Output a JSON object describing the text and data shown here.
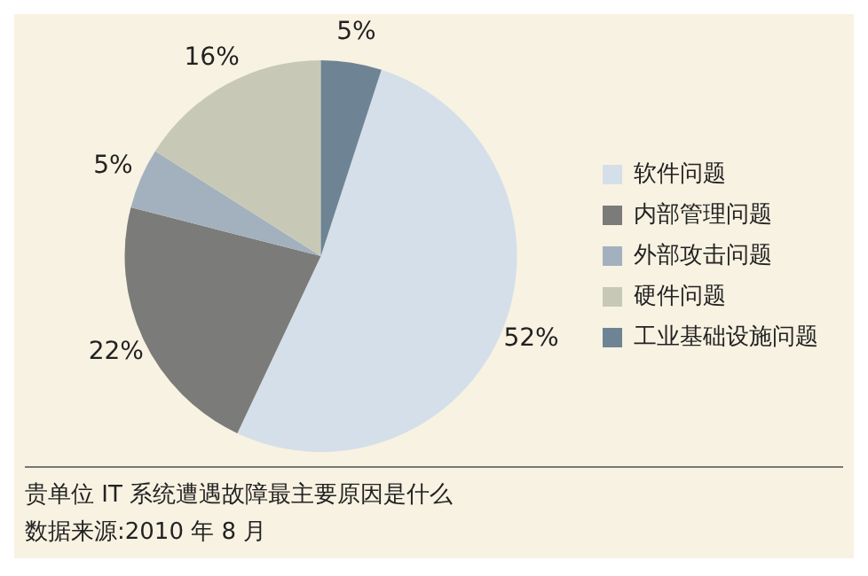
{
  "chart_data": {
    "type": "pie",
    "title": "贵单位 IT 系统遭遇故障最主要原因是什么",
    "annotations": [
      "数据来源:2010 年 8 月"
    ],
    "categories": [
      "软件问题",
      "内部管理问题",
      "外部攻击问题",
      "硬件问题",
      "工业基础设施问题"
    ],
    "values": [
      52,
      22,
      5,
      16,
      5
    ],
    "value_labels": [
      "52%",
      "22%",
      "5%",
      "16%",
      "5%"
    ],
    "colors": [
      "#d5dfea",
      "#7b7b79",
      "#a3b1be",
      "#c7c9b6",
      "#6e8494"
    ],
    "legend": "right"
  }
}
